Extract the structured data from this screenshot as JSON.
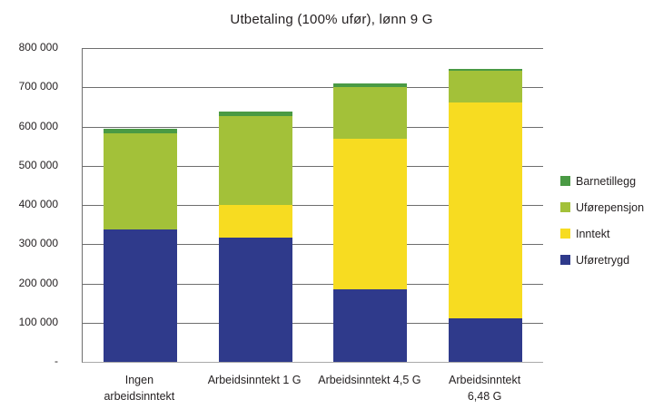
{
  "chart_data": {
    "type": "bar",
    "stacked": true,
    "title": "Utbetaling (100% ufør), lønn 9 G",
    "categories": [
      "Ingen arbeidsinntekt",
      "Arbeidsinntekt 1 G",
      "Arbeidsinntekt 4,5 G",
      "Arbeidsinntekt 6,48 G"
    ],
    "category_label_lines": [
      [
        "Ingen",
        "arbeidsinntekt"
      ],
      [
        "Arbeidsinntekt 1 G"
      ],
      [
        "Arbeidsinntekt 4,5 G"
      ],
      [
        "Arbeidsinntekt",
        "6,48 G"
      ]
    ],
    "series": [
      {
        "name": "Uføretrygd",
        "color": "#2f3a8b",
        "values": [
          338000,
          316000,
          185000,
          110000
        ]
      },
      {
        "name": "Inntekt",
        "color": "#f7dc21",
        "values": [
          0,
          84000,
          385000,
          552000
        ]
      },
      {
        "name": "Uførepensjon",
        "color": "#a3c139",
        "values": [
          245000,
          226000,
          130000,
          80000
        ]
      },
      {
        "name": "Barnetillegg",
        "color": "#4a9a44",
        "values": [
          12000,
          12000,
          11000,
          6000
        ]
      }
    ],
    "totals": [
      595000,
      638000,
      711000,
      748000
    ],
    "legend_order": [
      "Barnetillegg",
      "Uførepensjon",
      "Inntekt",
      "Uføretrygd"
    ],
    "legend_position": "right",
    "grid": true,
    "ylim": [
      0,
      800000
    ],
    "ytick_step": 100000,
    "yticks": [
      {
        "value": 0,
        "label": "-"
      },
      {
        "value": 100000,
        "label": "100 000"
      },
      {
        "value": 200000,
        "label": "200 000"
      },
      {
        "value": 300000,
        "label": "300 000"
      },
      {
        "value": 400000,
        "label": "400 000"
      },
      {
        "value": 500000,
        "label": "500 000"
      },
      {
        "value": 600000,
        "label": "600 000"
      },
      {
        "value": 700000,
        "label": "700 000"
      },
      {
        "value": 800000,
        "label": "800 000"
      }
    ]
  }
}
